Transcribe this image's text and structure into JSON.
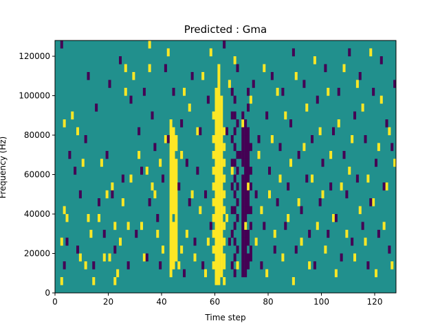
{
  "chart_data": {
    "type": "heatmap",
    "title": "Predicted : Gma",
    "xlabel": "Time step",
    "ylabel": "Frequency (Hz)",
    "xlim": [
      0,
      128
    ],
    "ylim": [
      0,
      128000
    ],
    "x_ticks": [
      0,
      20,
      40,
      60,
      80,
      100,
      120
    ],
    "y_ticks": [
      0,
      20000,
      40000,
      60000,
      80000,
      100000,
      120000
    ],
    "x_tick_labels": [
      "0",
      "20",
      "40",
      "60",
      "80",
      "100",
      "120"
    ],
    "y_tick_labels": [
      "0",
      "20000",
      "40000",
      "60000",
      "80000",
      "100000",
      "120000"
    ],
    "grid": false,
    "legend": "none",
    "cell_grid": {
      "time_steps": 128,
      "frequency_bins": 32,
      "bin_width_hz": 4000
    },
    "colors": {
      "background": "#21908d",
      "high": "#fde725",
      "low": "#440154"
    },
    "cells_high": [
      [
        2,
        1
      ],
      [
        2,
        6
      ],
      [
        3,
        10
      ],
      [
        3,
        21
      ],
      [
        4,
        9
      ],
      [
        6,
        22
      ],
      [
        8,
        20
      ],
      [
        9,
        4
      ],
      [
        10,
        16
      ],
      [
        11,
        3
      ],
      [
        12,
        9
      ],
      [
        13,
        7
      ],
      [
        14,
        1
      ],
      [
        16,
        9
      ],
      [
        17,
        16
      ],
      [
        18,
        4
      ],
      [
        19,
        12
      ],
      [
        20,
        4
      ],
      [
        21,
        13
      ],
      [
        22,
        1
      ],
      [
        22,
        8
      ],
      [
        23,
        2
      ],
      [
        24,
        6
      ],
      [
        25,
        11
      ],
      [
        26,
        25
      ],
      [
        26,
        28
      ],
      [
        27,
        8
      ],
      [
        28,
        14
      ],
      [
        29,
        27
      ],
      [
        31,
        17
      ],
      [
        32,
        8
      ],
      [
        33,
        4
      ],
      [
        34,
        15
      ],
      [
        35,
        28
      ],
      [
        35,
        31
      ],
      [
        36,
        13
      ],
      [
        37,
        12
      ],
      [
        38,
        7
      ],
      [
        39,
        16
      ],
      [
        40,
        5
      ],
      [
        41,
        19
      ],
      [
        42,
        30
      ],
      [
        44,
        14
      ],
      [
        45,
        9
      ],
      [
        46,
        3
      ],
      [
        47,
        5
      ],
      [
        47,
        17
      ],
      [
        48,
        25
      ],
      [
        49,
        7
      ],
      [
        50,
        23
      ],
      [
        51,
        12
      ],
      [
        52,
        4
      ],
      [
        53,
        20
      ],
      [
        54,
        10
      ],
      [
        55,
        27
      ],
      [
        56,
        2
      ],
      [
        57,
        6
      ],
      [
        58,
        30
      ],
      [
        59,
        22
      ],
      [
        60,
        14
      ],
      [
        61,
        18
      ],
      [
        62,
        11
      ],
      [
        63,
        1
      ],
      [
        64,
        9
      ],
      [
        65,
        26
      ],
      [
        66,
        15
      ],
      [
        67,
        29
      ],
      [
        68,
        3
      ],
      [
        70,
        21
      ],
      [
        71,
        8
      ],
      [
        72,
        13
      ],
      [
        73,
        24
      ],
      [
        75,
        6
      ],
      [
        76,
        17
      ],
      [
        77,
        10
      ],
      [
        78,
        28
      ],
      [
        79,
        2
      ],
      [
        80,
        12
      ],
      [
        81,
        19
      ],
      [
        82,
        7
      ],
      [
        83,
        25
      ],
      [
        84,
        14
      ],
      [
        85,
        4
      ],
      [
        86,
        22
      ],
      [
        87,
        9
      ],
      [
        88,
        16
      ],
      [
        89,
        1
      ],
      [
        90,
        27
      ],
      [
        91,
        11
      ],
      [
        92,
        6
      ],
      [
        93,
        18
      ],
      [
        94,
        23
      ],
      [
        95,
        3
      ],
      [
        96,
        14
      ],
      [
        97,
        29
      ],
      [
        98,
        8
      ],
      [
        99,
        20
      ],
      [
        100,
        12
      ],
      [
        101,
        5
      ],
      [
        102,
        25
      ],
      [
        103,
        17
      ],
      [
        104,
        9
      ],
      [
        105,
        2
      ],
      [
        106,
        21
      ],
      [
        107,
        13
      ],
      [
        108,
        28
      ],
      [
        109,
        7
      ],
      [
        110,
        15
      ],
      [
        111,
        19
      ],
      [
        112,
        4
      ],
      [
        113,
        26
      ],
      [
        114,
        10
      ],
      [
        115,
        23
      ],
      [
        116,
        6
      ],
      [
        117,
        14
      ],
      [
        118,
        30
      ],
      [
        119,
        11
      ],
      [
        120,
        2
      ],
      [
        121,
        18
      ],
      [
        122,
        24
      ],
      [
        123,
        8
      ],
      [
        124,
        13
      ],
      [
        125,
        20
      ],
      [
        126,
        3
      ],
      [
        127,
        16
      ],
      [
        43,
        2
      ],
      [
        43,
        3
      ],
      [
        43,
        4
      ],
      [
        43,
        5
      ],
      [
        43,
        6
      ],
      [
        43,
        7
      ],
      [
        43,
        8
      ],
      [
        43,
        9
      ],
      [
        43,
        10
      ],
      [
        43,
        11
      ],
      [
        43,
        12
      ],
      [
        43,
        13
      ],
      [
        43,
        14
      ],
      [
        43,
        15
      ],
      [
        43,
        16
      ],
      [
        43,
        17
      ],
      [
        43,
        18
      ],
      [
        43,
        19
      ],
      [
        43,
        20
      ],
      [
        43,
        21
      ],
      [
        44,
        3
      ],
      [
        44,
        4
      ],
      [
        44,
        5
      ],
      [
        44,
        6
      ],
      [
        44,
        7
      ],
      [
        44,
        8
      ],
      [
        44,
        10
      ],
      [
        44,
        11
      ],
      [
        44,
        12
      ],
      [
        44,
        13
      ],
      [
        44,
        15
      ],
      [
        44,
        16
      ],
      [
        44,
        17
      ],
      [
        44,
        18
      ],
      [
        44,
        19
      ],
      [
        44,
        20
      ],
      [
        45,
        4
      ],
      [
        45,
        5
      ],
      [
        45,
        6
      ],
      [
        45,
        7
      ],
      [
        45,
        8
      ],
      [
        45,
        10
      ],
      [
        45,
        11
      ],
      [
        45,
        12
      ],
      [
        45,
        13
      ],
      [
        45,
        14
      ],
      [
        45,
        15
      ],
      [
        45,
        16
      ],
      [
        45,
        18
      ],
      [
        45,
        19
      ],
      [
        59,
        3
      ],
      [
        59,
        5
      ],
      [
        59,
        7
      ],
      [
        59,
        9
      ],
      [
        59,
        11
      ],
      [
        59,
        13
      ],
      [
        59,
        15
      ],
      [
        59,
        17
      ],
      [
        59,
        19
      ],
      [
        60,
        1
      ],
      [
        60,
        2
      ],
      [
        60,
        3
      ],
      [
        60,
        4
      ],
      [
        60,
        5
      ],
      [
        60,
        6
      ],
      [
        60,
        7
      ],
      [
        60,
        8
      ],
      [
        60,
        9
      ],
      [
        60,
        10
      ],
      [
        60,
        11
      ],
      [
        60,
        12
      ],
      [
        60,
        13
      ],
      [
        60,
        14
      ],
      [
        60,
        15
      ],
      [
        60,
        16
      ],
      [
        60,
        17
      ],
      [
        60,
        18
      ],
      [
        60,
        19
      ],
      [
        60,
        20
      ],
      [
        60,
        21
      ],
      [
        60,
        22
      ],
      [
        60,
        23
      ],
      [
        60,
        24
      ],
      [
        60,
        25
      ],
      [
        61,
        1
      ],
      [
        61,
        2
      ],
      [
        61,
        3
      ],
      [
        61,
        4
      ],
      [
        61,
        5
      ],
      [
        61,
        6
      ],
      [
        61,
        7
      ],
      [
        61,
        8
      ],
      [
        61,
        9
      ],
      [
        61,
        10
      ],
      [
        61,
        11
      ],
      [
        61,
        12
      ],
      [
        61,
        13
      ],
      [
        61,
        14
      ],
      [
        61,
        15
      ],
      [
        61,
        16
      ],
      [
        61,
        17
      ],
      [
        61,
        18
      ],
      [
        61,
        19
      ],
      [
        61,
        20
      ],
      [
        61,
        21
      ],
      [
        61,
        22
      ],
      [
        61,
        23
      ],
      [
        61,
        24
      ],
      [
        61,
        25
      ],
      [
        61,
        26
      ],
      [
        61,
        27
      ],
      [
        61,
        28
      ],
      [
        62,
        2
      ],
      [
        62,
        3
      ],
      [
        62,
        4
      ],
      [
        62,
        5
      ],
      [
        62,
        6
      ],
      [
        62,
        7
      ],
      [
        62,
        8
      ],
      [
        62,
        9
      ],
      [
        62,
        10
      ],
      [
        62,
        11
      ],
      [
        62,
        12
      ],
      [
        62,
        13
      ],
      [
        62,
        14
      ],
      [
        62,
        15
      ],
      [
        62,
        16
      ],
      [
        62,
        17
      ],
      [
        62,
        18
      ],
      [
        62,
        19
      ],
      [
        62,
        20
      ],
      [
        62,
        21
      ],
      [
        62,
        22
      ],
      [
        62,
        23
      ],
      [
        62,
        24
      ],
      [
        63,
        3
      ],
      [
        63,
        4
      ],
      [
        63,
        6
      ],
      [
        63,
        8
      ],
      [
        63,
        10
      ],
      [
        63,
        12
      ],
      [
        63,
        14
      ],
      [
        63,
        16
      ],
      [
        63,
        18
      ],
      [
        63,
        20
      ]
    ],
    "cells_low": [
      [
        2,
        31
      ],
      [
        3,
        3
      ],
      [
        4,
        6
      ],
      [
        5,
        17
      ],
      [
        7,
        15
      ],
      [
        8,
        5
      ],
      [
        9,
        12
      ],
      [
        11,
        19
      ],
      [
        12,
        27
      ],
      [
        14,
        3
      ],
      [
        15,
        23
      ],
      [
        16,
        11
      ],
      [
        18,
        7
      ],
      [
        19,
        17
      ],
      [
        20,
        26
      ],
      [
        21,
        12
      ],
      [
        22,
        5
      ],
      [
        24,
        29
      ],
      [
        25,
        14
      ],
      [
        27,
        3
      ],
      [
        28,
        24
      ],
      [
        30,
        7
      ],
      [
        31,
        20
      ],
      [
        32,
        15
      ],
      [
        33,
        25
      ],
      [
        34,
        4
      ],
      [
        35,
        11
      ],
      [
        36,
        22
      ],
      [
        37,
        18
      ],
      [
        38,
        9
      ],
      [
        39,
        3
      ],
      [
        40,
        14
      ],
      [
        41,
        28
      ],
      [
        42,
        19
      ],
      [
        44,
        25
      ],
      [
        46,
        13
      ],
      [
        47,
        21
      ],
      [
        48,
        2
      ],
      [
        49,
        16
      ],
      [
        50,
        11
      ],
      [
        51,
        27
      ],
      [
        52,
        6
      ],
      [
        53,
        15
      ],
      [
        54,
        20
      ],
      [
        55,
        3
      ],
      [
        56,
        12
      ],
      [
        57,
        24
      ],
      [
        58,
        8
      ],
      [
        63,
        31
      ],
      [
        64,
        20
      ],
      [
        65,
        6
      ],
      [
        66,
        25
      ],
      [
        67,
        12
      ],
      [
        68,
        28
      ],
      [
        69,
        17
      ],
      [
        70,
        9
      ],
      [
        71,
        4
      ],
      [
        72,
        15
      ],
      [
        74,
        26
      ],
      [
        75,
        12
      ],
      [
        76,
        19
      ],
      [
        77,
        3
      ],
      [
        78,
        8
      ],
      [
        79,
        22
      ],
      [
        80,
        15
      ],
      [
        81,
        27
      ],
      [
        82,
        5
      ],
      [
        83,
        11
      ],
      [
        84,
        18
      ],
      [
        85,
        25
      ],
      [
        86,
        8
      ],
      [
        87,
        13
      ],
      [
        88,
        21
      ],
      [
        89,
        30
      ],
      [
        90,
        5
      ],
      [
        91,
        17
      ],
      [
        92,
        10
      ],
      [
        93,
        26
      ],
      [
        94,
        14
      ],
      [
        95,
        7
      ],
      [
        96,
        19
      ],
      [
        97,
        3
      ],
      [
        98,
        24
      ],
      [
        99,
        11
      ],
      [
        100,
        16
      ],
      [
        101,
        28
      ],
      [
        102,
        7
      ],
      [
        103,
        13
      ],
      [
        104,
        20
      ],
      [
        105,
        9
      ],
      [
        106,
        25
      ],
      [
        107,
        4
      ],
      [
        108,
        17
      ],
      [
        109,
        12
      ],
      [
        110,
        30
      ],
      [
        111,
        6
      ],
      [
        112,
        22
      ],
      [
        113,
        14
      ],
      [
        114,
        27
      ],
      [
        115,
        8
      ],
      [
        116,
        19
      ],
      [
        117,
        3
      ],
      [
        118,
        11
      ],
      [
        119,
        25
      ],
      [
        120,
        16
      ],
      [
        121,
        7
      ],
      [
        122,
        29
      ],
      [
        123,
        13
      ],
      [
        124,
        21
      ],
      [
        125,
        5
      ],
      [
        126,
        18
      ],
      [
        127,
        26
      ],
      [
        66,
        3
      ],
      [
        66,
        7
      ],
      [
        66,
        10
      ],
      [
        66,
        13
      ],
      [
        66,
        16
      ],
      [
        66,
        19
      ],
      [
        66,
        22
      ],
      [
        67,
        2
      ],
      [
        67,
        4
      ],
      [
        67,
        6
      ],
      [
        67,
        8
      ],
      [
        67,
        10
      ],
      [
        67,
        14
      ],
      [
        67,
        16
      ],
      [
        67,
        18
      ],
      [
        67,
        20
      ],
      [
        67,
        22
      ],
      [
        67,
        24
      ],
      [
        68,
        5
      ],
      [
        68,
        9
      ],
      [
        68,
        11
      ],
      [
        68,
        13
      ],
      [
        68,
        15
      ],
      [
        68,
        17
      ],
      [
        68,
        21
      ],
      [
        70,
        2
      ],
      [
        70,
        3
      ],
      [
        70,
        4
      ],
      [
        70,
        5
      ],
      [
        70,
        6
      ],
      [
        70,
        7
      ],
      [
        70,
        8
      ],
      [
        70,
        10
      ],
      [
        70,
        11
      ],
      [
        70,
        12
      ],
      [
        70,
        13
      ],
      [
        70,
        14
      ],
      [
        70,
        16
      ],
      [
        70,
        17
      ],
      [
        70,
        18
      ],
      [
        70,
        19
      ],
      [
        70,
        20
      ],
      [
        70,
        22
      ],
      [
        71,
        2
      ],
      [
        71,
        3
      ],
      [
        71,
        5
      ],
      [
        71,
        6
      ],
      [
        71,
        7
      ],
      [
        71,
        9
      ],
      [
        71,
        10
      ],
      [
        71,
        11
      ],
      [
        71,
        12
      ],
      [
        71,
        13
      ],
      [
        71,
        14
      ],
      [
        71,
        15
      ],
      [
        71,
        16
      ],
      [
        71,
        17
      ],
      [
        71,
        18
      ],
      [
        71,
        19
      ],
      [
        71,
        20
      ],
      [
        71,
        21
      ],
      [
        72,
        3
      ],
      [
        72,
        4
      ],
      [
        72,
        6
      ],
      [
        72,
        7
      ],
      [
        72,
        10
      ],
      [
        72,
        11
      ],
      [
        72,
        12
      ],
      [
        72,
        14
      ],
      [
        72,
        16
      ],
      [
        72,
        17
      ],
      [
        72,
        18
      ],
      [
        72,
        19
      ],
      [
        72,
        20
      ],
      [
        72,
        23
      ],
      [
        72,
        25
      ],
      [
        73,
        4
      ],
      [
        73,
        5
      ],
      [
        73,
        8
      ],
      [
        73,
        10
      ],
      [
        73,
        13
      ],
      [
        73,
        15
      ],
      [
        73,
        18
      ]
    ]
  }
}
